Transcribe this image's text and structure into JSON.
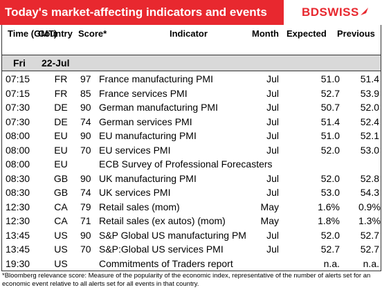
{
  "header": {
    "title": "Today's market-affecting indicators and events",
    "logo": "BDSWISS",
    "brand_color": "#e8282f"
  },
  "columns": {
    "time": "Time (GMT)",
    "country": "Country",
    "score": "Score*",
    "indicator": "Indicator",
    "month": "Month",
    "expected": "Expected",
    "previous": "Previous"
  },
  "date_row": {
    "day": "Fri",
    "date": "22-Jul"
  },
  "rows": [
    {
      "time": "07:15",
      "country": "FR",
      "score": "97",
      "indicator": "France manufacturing PMI",
      "month": "Jul",
      "expected": "51.0",
      "previous": "51.4"
    },
    {
      "time": "07:15",
      "country": "FR",
      "score": "85",
      "indicator": "France services PMI",
      "month": "Jul",
      "expected": "52.7",
      "previous": "53.9"
    },
    {
      "time": "07:30",
      "country": "DE",
      "score": "90",
      "indicator": "German manufacturing PMI",
      "month": "Jul",
      "expected": "50.7",
      "previous": "52.0"
    },
    {
      "time": "07:30",
      "country": "DE",
      "score": "74",
      "indicator": "German services PMI",
      "month": "Jul",
      "expected": "51.4",
      "previous": "52.4"
    },
    {
      "time": "08:00",
      "country": "EU",
      "score": "90",
      "indicator": "EU manufacturing PMI",
      "month": "Jul",
      "expected": "51.0",
      "previous": "52.1"
    },
    {
      "time": "08:00",
      "country": "EU",
      "score": "70",
      "indicator": "EU services PMI",
      "month": "Jul",
      "expected": "52.0",
      "previous": "53.0"
    },
    {
      "time": "08:00",
      "country": "EU",
      "score": "",
      "indicator": "ECB Survey of Professional Forecasters",
      "month": "",
      "expected": "",
      "previous": ""
    },
    {
      "time": "08:30",
      "country": "GB",
      "score": "90",
      "indicator": "UK manufacturing PMI",
      "month": "Jul",
      "expected": "52.0",
      "previous": "52.8"
    },
    {
      "time": "08:30",
      "country": "GB",
      "score": "74",
      "indicator": "UK services PMI",
      "month": "Jul",
      "expected": "53.0",
      "previous": "54.3"
    },
    {
      "time": "12:30",
      "country": "CA",
      "score": "79",
      "indicator": "Retail sales (mom)",
      "month": "May",
      "expected": "1.6%",
      "previous": "0.9%"
    },
    {
      "time": "12:30",
      "country": "CA",
      "score": "71",
      "indicator": "Retail sales (ex autos) (mom)",
      "month": "May",
      "expected": "1.8%",
      "previous": "1.3%"
    },
    {
      "time": "13:45",
      "country": "US",
      "score": "90",
      "indicator": "S&P Global US manufacturing PM",
      "month": "Jul",
      "expected": "52.0",
      "previous": "52.7"
    },
    {
      "time": "13:45",
      "country": "US",
      "score": "70",
      "indicator": "S&P:Global US services PMI",
      "month": "Jul",
      "expected": "52.7",
      "previous": "52.7"
    },
    {
      "time": "19:30",
      "country": "US",
      "score": "",
      "indicator": "Commitments of Traders  report",
      "month": "",
      "expected": "n.a.",
      "previous": "n.a."
    }
  ],
  "footnote": "*Bloomberg relevance score:  Measure of the popularity of the economic index, representative of the number of alerts set for an economic event relative to all alerts set for all events in that country."
}
